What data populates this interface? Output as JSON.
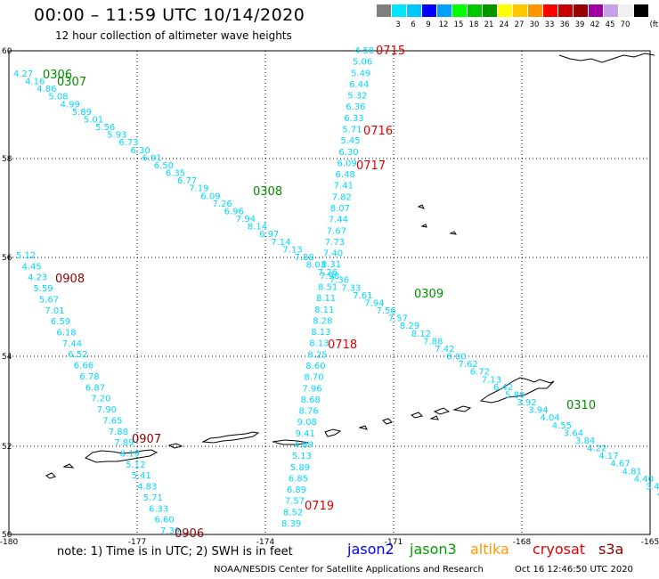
{
  "title": "00:00 – 11:59 UTC 10/14/2020",
  "subtitle": "12 hour collection of altimeter wave heights",
  "legend": {
    "unit": "(ft)",
    "bins": [
      {
        "color": "#7f7f7f",
        "label": ""
      },
      {
        "color": "#00e5ff",
        "label": "3"
      },
      {
        "color": "#00c8ff",
        "label": "6"
      },
      {
        "color": "#0000ff",
        "label": "9"
      },
      {
        "color": "#00a0ff",
        "label": "12"
      },
      {
        "color": "#00ff00",
        "label": "15"
      },
      {
        "color": "#00c800",
        "label": "18"
      },
      {
        "color": "#009600",
        "label": "21"
      },
      {
        "color": "#ffff00",
        "label": "24"
      },
      {
        "color": "#ffc800",
        "label": "27"
      },
      {
        "color": "#ff9600",
        "label": "30"
      },
      {
        "color": "#ff0000",
        "label": "33"
      },
      {
        "color": "#c80000",
        "label": "36"
      },
      {
        "color": "#960000",
        "label": "39"
      },
      {
        "color": "#a000a0",
        "label": "42"
      },
      {
        "color": "#c8a0e6",
        "label": "45"
      },
      {
        "color": "#f0f0f0",
        "label": "70"
      },
      {
        "color": "#000000",
        "label": ""
      }
    ]
  },
  "axes": {
    "lat_ticks": [
      "60",
      "58",
      "56",
      "54",
      "52",
      "50"
    ],
    "lon_ticks": [
      "-180",
      "-177",
      "-174",
      "-171",
      "-168",
      "-165"
    ]
  },
  "track_values": [
    {
      "color": "#00d8ff",
      "values": [
        "4.27",
        "4.16",
        "4.86",
        "5.08",
        "4.99",
        "5.89",
        "5.01",
        "5.56",
        "5.93",
        "6.73",
        "6.30",
        "6.91",
        "6.50",
        "6.35",
        "6.77",
        "7.19",
        "6.09",
        "7.26",
        "6.96",
        "7.94",
        "8.14",
        "6.97",
        "7.14",
        "7.13",
        "7.88",
        "8.03",
        "7.26",
        "7.36",
        "7.33",
        "7.61",
        "7.94",
        "7.56",
        "7.57",
        "8.29",
        "8.12",
        "7.88",
        "7.42",
        "8.00",
        "7.62",
        "6.72",
        "7.13",
        "6.42",
        "5.80",
        "3.92",
        "3.94",
        "4.04",
        "4.55",
        "3.64",
        "3.84",
        "4.22",
        "4.17",
        "4.67",
        "4.81",
        "4.40",
        "3.43",
        "4.7"
      ]
    },
    {
      "color": "#00d8ff",
      "values": [
        "4.58",
        "5.06",
        "5.49",
        "6.44",
        "5.32",
        "6.36",
        "6.33",
        "5.71",
        "5.45",
        "6.30",
        "6.09",
        "6.48",
        "7.41",
        "7.82",
        "8.07",
        "7.44",
        "7.67",
        "7.73",
        "7.40",
        "8.31",
        "7.98",
        "8.51",
        "8.11",
        "8.11",
        "8.28",
        "8.13",
        "8.13",
        "8.25",
        "8.60",
        "8.70",
        "7.96",
        "8.68",
        "8.76",
        "9.08",
        "9.41",
        "4.89",
        "5.13",
        "5.89",
        "6.85",
        "6.89",
        "7.57",
        "8.52",
        "8.39"
      ]
    },
    {
      "color": "#00d8ff",
      "values": [
        "5.12",
        "4.45",
        "4.23",
        "5.59",
        "5.67",
        "7.01",
        "6.59",
        "6.18",
        "7.44",
        "6.52",
        "6.66",
        "6.78",
        "6.87",
        "7.20",
        "7.90",
        "7.65",
        "7.88",
        "7.89",
        "8.19",
        "5.12",
        "5.41",
        "4.83",
        "5.71",
        "6.33",
        "6.60",
        "7.39"
      ]
    }
  ],
  "pass_labels": [
    {
      "text": "0306",
      "color": "#008c00"
    },
    {
      "text": "0307",
      "color": "#008c00"
    },
    {
      "text": "0308",
      "color": "#008c00"
    },
    {
      "text": "0309",
      "color": "#008c00"
    },
    {
      "text": "0310",
      "color": "#008c00"
    },
    {
      "text": "0715",
      "color": "#e00000"
    },
    {
      "text": "0716",
      "color": "#e00000"
    },
    {
      "text": "0717",
      "color": "#e00000"
    },
    {
      "text": "0718",
      "color": "#e00000"
    },
    {
      "text": "0719",
      "color": "#e00000"
    },
    {
      "text": "0908",
      "color": "#8b0000"
    },
    {
      "text": "0907",
      "color": "#8b0000"
    },
    {
      "text": "0906",
      "color": "#8b0000"
    }
  ],
  "footnote": "note: 1) Time is in UTC; 2) SWH is in feet",
  "satellites": [
    {
      "name": "jason2",
      "color": "#0000ff"
    },
    {
      "name": "jason3",
      "color": "#00a000"
    },
    {
      "name": "altika",
      "color": "#ff9900"
    },
    {
      "name": "cryosat",
      "color": "#e00000"
    },
    {
      "name": "s3a",
      "color": "#8b0000"
    }
  ],
  "credit": "NOAA/NESDIS Center for Satellite Applications and Research",
  "timestamp": "Oct 16 12:46:50 UTC 2020"
}
